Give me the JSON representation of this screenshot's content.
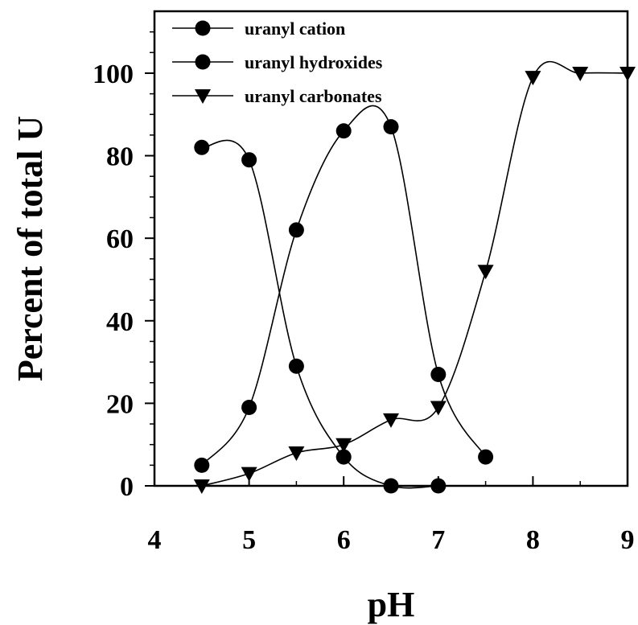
{
  "chart_data": {
    "type": "line",
    "title": "",
    "xlabel": "pH",
    "ylabel": "Percent of total U",
    "xlim": [
      4,
      9
    ],
    "ylim": [
      0,
      115
    ],
    "x_ticks": [
      "4",
      "5",
      "6",
      "7",
      "8",
      "9"
    ],
    "y_ticks": [
      "0",
      "20",
      "40",
      "60",
      "80",
      "100"
    ],
    "grid": false,
    "smooth": true,
    "legend": {
      "position": "top-left",
      "entries": [
        "uranyl cation",
        "uranyl hydroxides",
        "uranyl carbonates"
      ]
    },
    "series": [
      {
        "name": "uranyl cation",
        "marker": "circle",
        "x": [
          4.5,
          5.0,
          5.5,
          6.0,
          6.5,
          7.0
        ],
        "y": [
          82,
          79,
          29,
          7,
          0,
          0
        ]
      },
      {
        "name": "uranyl hydroxides",
        "marker": "circle",
        "x": [
          4.5,
          5.0,
          5.5,
          6.0,
          6.5,
          7.0,
          7.5
        ],
        "y": [
          5,
          19,
          62,
          86,
          87,
          27,
          7
        ]
      },
      {
        "name": "uranyl carbonates",
        "marker": "triangle-down",
        "x": [
          4.5,
          5.0,
          5.5,
          6.0,
          6.5,
          7.0,
          7.5,
          8.0,
          8.5,
          9.0
        ],
        "y": [
          0,
          3,
          8,
          10,
          16,
          19,
          52,
          99,
          100,
          100
        ]
      }
    ]
  }
}
